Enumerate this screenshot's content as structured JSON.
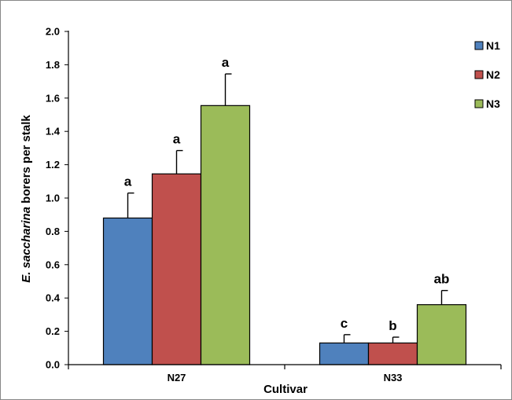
{
  "chart_data": {
    "type": "bar",
    "title": "",
    "xlabel": "Cultivar",
    "ylabel_italic": "E. saccharina",
    "ylabel_rest": " borers per stalk",
    "categories": [
      "N27",
      "N33"
    ],
    "ylim": [
      0,
      2.0
    ],
    "yticks": [
      "0.0",
      "0.2",
      "0.4",
      "0.6",
      "0.8",
      "1.0",
      "1.2",
      "1.4",
      "1.6",
      "1.8",
      "2.0"
    ],
    "grid": false,
    "legend_position": "top-right",
    "series": [
      {
        "name": "N1",
        "color": "#4f81bd",
        "values": [
          0.88,
          0.13
        ],
        "errors": [
          0.15,
          0.05
        ],
        "labels": [
          "a",
          "c"
        ]
      },
      {
        "name": "N2",
        "color": "#c0504d",
        "values": [
          1.145,
          0.13
        ],
        "errors": [
          0.14,
          0.035
        ],
        "labels": [
          "a",
          "b"
        ]
      },
      {
        "name": "N3",
        "color": "#9bbb59",
        "values": [
          1.555,
          0.36
        ],
        "errors": [
          0.19,
          0.085
        ],
        "labels": [
          "a",
          "ab"
        ]
      }
    ]
  }
}
